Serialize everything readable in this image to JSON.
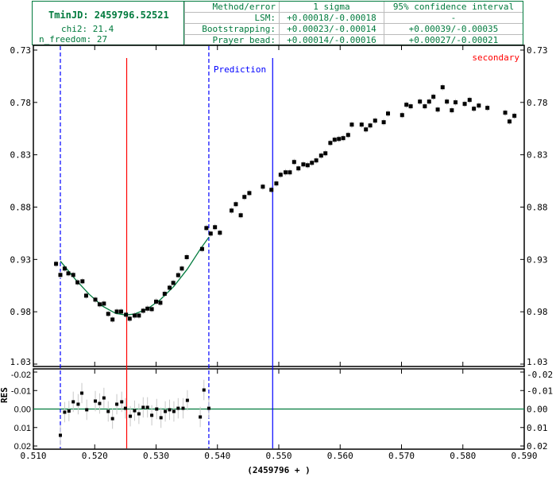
{
  "header": {
    "tmin_label": "TminJD: 2459796.52521",
    "chi2_label": "chi2: 21.4",
    "nfreedom_label": "n_freedom: 27",
    "table": {
      "columns": [
        "Method/error",
        "1 sigma",
        "95% confidence interval"
      ],
      "rows": [
        [
          "LSM:",
          "+0.00018/-0.00018",
          "-"
        ],
        [
          "Bootstrapping:",
          "+0.00023/-0.00014",
          "+0.00039/-0.00035"
        ],
        [
          "Prayer bead:",
          "+0.00014/-0.00016",
          "+0.00027/-0.00021"
        ]
      ]
    }
  },
  "chart_data": {
    "type": "scatter",
    "xlabel": "(2459796 + )",
    "xlim": [
      0.51,
      0.59
    ],
    "xticks": [
      "0.510",
      "0.520",
      "0.530",
      "0.540",
      "0.550",
      "0.560",
      "0.570",
      "0.580",
      "0.590"
    ],
    "main": {
      "ylim": [
        0.73,
        1.03
      ],
      "inverted": true,
      "yticks": [
        "0.73",
        "0.78",
        "0.83",
        "0.88",
        "0.93",
        "0.98",
        "1.03"
      ],
      "error": 0.0032,
      "points": [
        [
          0.5137,
          0.9342
        ],
        [
          0.5144,
          0.9448
        ],
        [
          0.5151,
          0.9387
        ],
        [
          0.5157,
          0.9433
        ],
        [
          0.5165,
          0.9448
        ],
        [
          0.5172,
          0.9519
        ],
        [
          0.518,
          0.9509
        ],
        [
          0.5186,
          0.9646
        ],
        [
          0.5201,
          0.9684
        ],
        [
          0.5208,
          0.9729
        ],
        [
          0.5215,
          0.9722
        ],
        [
          0.5222,
          0.982
        ],
        [
          0.5229,
          0.9874
        ],
        [
          0.5236,
          0.9798
        ],
        [
          0.5243,
          0.9798
        ],
        [
          0.5251,
          0.9828
        ],
        [
          0.5257,
          0.9866
        ],
        [
          0.5265,
          0.9836
        ],
        [
          0.5272,
          0.9836
        ],
        [
          0.5279,
          0.979
        ],
        [
          0.5286,
          0.977
        ],
        [
          0.5293,
          0.9775
        ],
        [
          0.53,
          0.9703
        ],
        [
          0.5307,
          0.9714
        ],
        [
          0.5314,
          0.9628
        ],
        [
          0.5322,
          0.957
        ],
        [
          0.5328,
          0.9524
        ],
        [
          0.5336,
          0.945
        ],
        [
          0.5342,
          0.9387
        ],
        [
          0.535,
          0.9278
        ],
        [
          0.5375,
          0.92
        ],
        [
          0.5382,
          0.9
        ],
        [
          0.5389,
          0.9053
        ],
        [
          0.5396,
          0.8992
        ],
        [
          0.5404,
          0.9045
        ],
        [
          0.5423,
          0.8833
        ],
        [
          0.543,
          0.8772
        ],
        [
          0.5438,
          0.8878
        ],
        [
          0.5444,
          0.8703
        ],
        [
          0.5452,
          0.8666
        ],
        [
          0.5474,
          0.8605
        ],
        [
          0.5488,
          0.8635
        ],
        [
          0.5496,
          0.8574
        ],
        [
          0.5503,
          0.8491
        ],
        [
          0.5511,
          0.8468
        ],
        [
          0.5518,
          0.8468
        ],
        [
          0.5525,
          0.8369
        ],
        [
          0.5532,
          0.843
        ],
        [
          0.554,
          0.8392
        ],
        [
          0.5547,
          0.84
        ],
        [
          0.5554,
          0.8377
        ],
        [
          0.5561,
          0.8354
        ],
        [
          0.5569,
          0.8308
        ],
        [
          0.5576,
          0.8286
        ],
        [
          0.5584,
          0.8187
        ],
        [
          0.5591,
          0.8156
        ],
        [
          0.5598,
          0.8149
        ],
        [
          0.5605,
          0.8141
        ],
        [
          0.5613,
          0.8111
        ],
        [
          0.5619,
          0.8012
        ],
        [
          0.5635,
          0.8012
        ],
        [
          0.5642,
          0.8058
        ],
        [
          0.5649,
          0.802
        ],
        [
          0.5657,
          0.7974
        ],
        [
          0.5671,
          0.7989
        ],
        [
          0.5678,
          0.7906
        ],
        [
          0.5701,
          0.7921
        ],
        [
          0.5708,
          0.7822
        ],
        [
          0.5715,
          0.7837
        ],
        [
          0.573,
          0.7792
        ],
        [
          0.5738,
          0.7837
        ],
        [
          0.5745,
          0.7792
        ],
        [
          0.5752,
          0.7746
        ],
        [
          0.5759,
          0.7868
        ],
        [
          0.5767,
          0.7655
        ],
        [
          0.5774,
          0.7792
        ],
        [
          0.5782,
          0.7875
        ],
        [
          0.5788,
          0.7799
        ],
        [
          0.5803,
          0.7814
        ],
        [
          0.5811,
          0.7776
        ],
        [
          0.5818,
          0.786
        ],
        [
          0.5826,
          0.783
        ],
        [
          0.584,
          0.7852
        ],
        [
          0.5869,
          0.7898
        ],
        [
          0.5876,
          0.7982
        ],
        [
          0.5884,
          0.7928
        ]
      ],
      "model": [
        [
          0.5144,
          0.9316
        ],
        [
          0.5169,
          0.9494
        ],
        [
          0.5191,
          0.9633
        ],
        [
          0.5213,
          0.9747
        ],
        [
          0.5234,
          0.9815
        ],
        [
          0.5249,
          0.983
        ],
        [
          0.5264,
          0.9823
        ],
        [
          0.5286,
          0.9772
        ],
        [
          0.5307,
          0.9684
        ],
        [
          0.5329,
          0.9557
        ],
        [
          0.5351,
          0.9392
        ],
        [
          0.5372,
          0.9202
        ],
        [
          0.5386,
          0.9088
        ]
      ]
    },
    "residuals": {
      "ylabel": "RES",
      "ylim": [
        -0.02,
        0.02
      ],
      "inverted": true,
      "yticks": [
        "-0.02",
        "-0.01",
        "0.00",
        "0.01",
        "0.02"
      ],
      "yvalues": [
        -0.02,
        -0.01,
        0,
        0.01,
        0.02
      ],
      "error": 0.0055,
      "points": [
        [
          0.5144,
          0.0142
        ],
        [
          0.5151,
          0.0017
        ],
        [
          0.5158,
          0.0011
        ],
        [
          0.5165,
          -0.0039
        ],
        [
          0.5173,
          -0.0026
        ],
        [
          0.5179,
          -0.0086
        ],
        [
          0.5187,
          0.0004
        ],
        [
          0.5201,
          -0.0043
        ],
        [
          0.5208,
          -0.003
        ],
        [
          0.5215,
          -0.006
        ],
        [
          0.5222,
          0.0013
        ],
        [
          0.5229,
          0.0052
        ],
        [
          0.5236,
          -0.0026
        ],
        [
          0.5244,
          -0.0039
        ],
        [
          0.525,
          -0.0004
        ],
        [
          0.5258,
          0.0039
        ],
        [
          0.5265,
          0.0009
        ],
        [
          0.5272,
          0.0026
        ],
        [
          0.5279,
          -0.0009
        ],
        [
          0.5286,
          -0.0009
        ],
        [
          0.5293,
          0.0034
        ],
        [
          0.5301,
          0.0
        ],
        [
          0.5308,
          0.0047
        ],
        [
          0.5315,
          0.0013
        ],
        [
          0.5322,
          0.0004
        ],
        [
          0.5329,
          0.0013
        ],
        [
          0.5336,
          -0.0004
        ],
        [
          0.5344,
          -0.0004
        ],
        [
          0.5351,
          -0.0047
        ],
        [
          0.5372,
          0.0043
        ],
        [
          0.5378,
          -0.0103
        ],
        [
          0.5386,
          -0.0004
        ]
      ]
    },
    "markers": {
      "tmin": 0.52521,
      "window": [
        0.5144,
        0.5386
      ],
      "prediction": 0.549,
      "prediction_label": "Prediction",
      "secondary_label": "secondary"
    },
    "colors": {
      "model": "#007a3d",
      "tmin": "#ff0000",
      "window": "#0000ff",
      "prediction": "#0000ff",
      "error": "#c8c8c8",
      "point": "#000000",
      "text": "#007a3d"
    }
  }
}
